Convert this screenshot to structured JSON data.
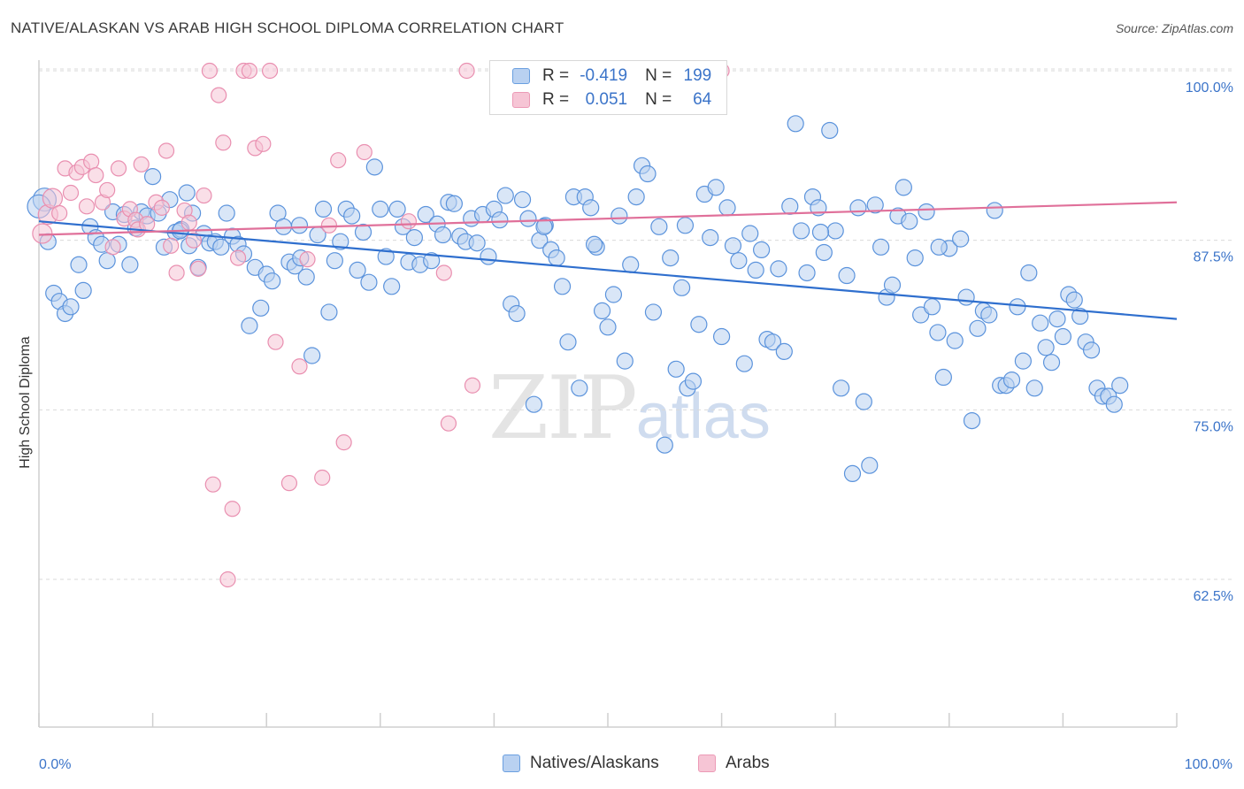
{
  "title": "NATIVE/ALASKAN VS ARAB HIGH SCHOOL DIPLOMA CORRELATION CHART",
  "source": "Source: ZipAtlas.com",
  "colors": {
    "blue": "#3b74c9",
    "blue_line": "#2f6fce",
    "blue_fill": "#b9d1f1",
    "pink_line": "#e0709a",
    "pink_fill": "#f6c5d5",
    "grid": "#d9d9d9"
  },
  "legend": {
    "r_label": "R =",
    "n_label": "N =",
    "rows": [
      {
        "r": "-0.419",
        "n": "199"
      },
      {
        "r": "0.051",
        "n": "64"
      }
    ]
  },
  "bottom_legend": [
    "Natives/Alaskans",
    "Arabs"
  ],
  "watermark": {
    "zip": "ZIP",
    "atlas": "atlas"
  },
  "chart_data": {
    "type": "scatter",
    "ylabel": "High School Diploma",
    "xlabel": "",
    "xlim": [
      0,
      100
    ],
    "ylim": [
      50,
      102
    ],
    "x_tick_labels": [
      "0.0%",
      "100.0%"
    ],
    "y_ticks": [
      62.5,
      75.0,
      87.5,
      100.0
    ],
    "y_tick_labels": [
      "62.5%",
      "75.0%",
      "87.5%",
      "100.0%"
    ],
    "grid": "horizontal dashed",
    "series": [
      {
        "name": "Natives/Alaskans",
        "color": "#3b74c9",
        "trend": {
          "x": [
            0,
            100
          ],
          "y": [
            88.9,
            81.7
          ]
        },
        "points": [
          [
            0.5,
            90.5
          ],
          [
            0.8,
            87.4
          ],
          [
            1.3,
            83.6
          ],
          [
            1.8,
            83.0
          ],
          [
            2.3,
            82.1
          ],
          [
            2.8,
            82.6
          ],
          [
            3.5,
            85.7
          ],
          [
            3.9,
            83.8
          ],
          [
            4.5,
            88.5
          ],
          [
            5.0,
            87.7
          ],
          [
            5.5,
            87.2
          ],
          [
            6.0,
            86.0
          ],
          [
            6.5,
            89.6
          ],
          [
            7.0,
            87.2
          ],
          [
            7.5,
            89.4
          ],
          [
            8.0,
            85.7
          ],
          [
            8.5,
            88.4
          ],
          [
            9.0,
            89.6
          ],
          [
            9.5,
            89.3
          ],
          [
            10.0,
            92.2
          ],
          [
            10.5,
            89.5
          ],
          [
            11.0,
            87.0
          ],
          [
            11.5,
            90.5
          ],
          [
            12.0,
            88.1
          ],
          [
            12.5,
            88.3
          ],
          [
            13.0,
            91.0
          ],
          [
            13.5,
            89.5
          ],
          [
            14.0,
            85.5
          ],
          [
            14.5,
            88.0
          ],
          [
            15.0,
            87.3
          ],
          [
            15.5,
            87.4
          ],
          [
            16.0,
            87.0
          ],
          [
            16.5,
            89.5
          ],
          [
            17.0,
            87.8
          ],
          [
            17.5,
            87.2
          ],
          [
            18.0,
            86.5
          ],
          [
            18.5,
            81.2
          ],
          [
            19.0,
            85.5
          ],
          [
            19.5,
            82.5
          ],
          [
            20.0,
            85.0
          ],
          [
            20.5,
            84.5
          ],
          [
            21.0,
            89.5
          ],
          [
            21.5,
            88.5
          ],
          [
            22.0,
            85.9
          ],
          [
            22.5,
            85.6
          ],
          [
            23.0,
            86.2
          ],
          [
            23.5,
            84.8
          ],
          [
            24.0,
            79.0
          ],
          [
            24.5,
            87.9
          ],
          [
            25.0,
            89.8
          ],
          [
            25.5,
            82.2
          ],
          [
            26.0,
            86.0
          ],
          [
            26.5,
            87.4
          ],
          [
            27.0,
            89.8
          ],
          [
            27.5,
            89.3
          ],
          [
            28.0,
            85.3
          ],
          [
            28.5,
            88.1
          ],
          [
            29.0,
            84.4
          ],
          [
            29.5,
            92.9
          ],
          [
            30.0,
            89.8
          ],
          [
            30.5,
            86.3
          ],
          [
            31.0,
            84.1
          ],
          [
            31.5,
            89.8
          ],
          [
            32.0,
            88.5
          ],
          [
            32.5,
            85.9
          ],
          [
            33.0,
            87.7
          ],
          [
            33.5,
            85.7
          ],
          [
            34.0,
            89.4
          ],
          [
            34.5,
            86.0
          ],
          [
            35.0,
            88.7
          ],
          [
            35.5,
            87.9
          ],
          [
            36.0,
            90.3
          ],
          [
            36.5,
            90.2
          ],
          [
            37.0,
            87.8
          ],
          [
            37.5,
            87.4
          ],
          [
            38.0,
            89.1
          ],
          [
            38.5,
            87.3
          ],
          [
            39.0,
            89.4
          ],
          [
            39.5,
            86.3
          ],
          [
            40.0,
            89.8
          ],
          [
            40.5,
            89.0
          ],
          [
            41.0,
            90.8
          ],
          [
            41.5,
            82.8
          ],
          [
            42.0,
            82.1
          ],
          [
            42.5,
            90.5
          ],
          [
            43.0,
            89.1
          ],
          [
            43.5,
            75.4
          ],
          [
            44.0,
            87.5
          ],
          [
            44.5,
            88.6
          ],
          [
            45.0,
            86.8
          ],
          [
            45.5,
            86.2
          ],
          [
            46.0,
            84.1
          ],
          [
            46.5,
            80.0
          ],
          [
            47.0,
            90.7
          ],
          [
            47.5,
            76.6
          ],
          [
            48.0,
            90.7
          ],
          [
            48.5,
            89.9
          ],
          [
            49.0,
            87.0
          ],
          [
            49.5,
            82.3
          ],
          [
            50.0,
            81.1
          ],
          [
            50.5,
            83.5
          ],
          [
            51.0,
            89.3
          ],
          [
            51.5,
            78.6
          ],
          [
            52.0,
            85.7
          ],
          [
            52.5,
            90.7
          ],
          [
            53.0,
            93.0
          ],
          [
            53.5,
            92.4
          ],
          [
            54.0,
            82.2
          ],
          [
            54.5,
            88.5
          ],
          [
            55.0,
            72.4
          ],
          [
            55.5,
            86.2
          ],
          [
            56.0,
            78.0
          ],
          [
            56.5,
            84.0
          ],
          [
            57.0,
            76.6
          ],
          [
            57.5,
            77.1
          ],
          [
            58.0,
            81.3
          ],
          [
            58.5,
            90.9
          ],
          [
            59.0,
            87.7
          ],
          [
            59.5,
            91.4
          ],
          [
            60.0,
            80.4
          ],
          [
            60.5,
            89.9
          ],
          [
            61.0,
            87.1
          ],
          [
            61.5,
            86.0
          ],
          [
            62.0,
            78.4
          ],
          [
            62.5,
            88.0
          ],
          [
            63.0,
            85.3
          ],
          [
            63.5,
            86.8
          ],
          [
            64.0,
            80.2
          ],
          [
            64.5,
            80.0
          ],
          [
            65.0,
            85.4
          ],
          [
            65.5,
            79.3
          ],
          [
            66.0,
            90.0
          ],
          [
            66.5,
            96.1
          ],
          [
            67.0,
            88.2
          ],
          [
            67.5,
            85.1
          ],
          [
            68.0,
            90.7
          ],
          [
            68.5,
            89.9
          ],
          [
            69.0,
            86.6
          ],
          [
            69.5,
            95.6
          ],
          [
            70.0,
            88.2
          ],
          [
            70.5,
            76.6
          ],
          [
            71.0,
            84.9
          ],
          [
            71.5,
            70.3
          ],
          [
            72.0,
            89.9
          ],
          [
            72.5,
            75.6
          ],
          [
            73.0,
            70.9
          ],
          [
            73.5,
            90.1
          ],
          [
            74.0,
            87.0
          ],
          [
            74.5,
            83.3
          ],
          [
            75.0,
            84.2
          ],
          [
            75.5,
            89.3
          ],
          [
            76.0,
            91.4
          ],
          [
            76.5,
            88.9
          ],
          [
            77.0,
            86.2
          ],
          [
            77.5,
            82.0
          ],
          [
            78.0,
            89.6
          ],
          [
            78.5,
            82.6
          ],
          [
            79.0,
            80.7
          ],
          [
            79.5,
            77.4
          ],
          [
            80.0,
            86.9
          ],
          [
            80.5,
            80.1
          ],
          [
            81.0,
            87.6
          ],
          [
            81.5,
            83.3
          ],
          [
            82.0,
            74.2
          ],
          [
            82.5,
            81.0
          ],
          [
            83.0,
            82.3
          ],
          [
            83.5,
            82.0
          ],
          [
            84.0,
            89.7
          ],
          [
            84.5,
            76.8
          ],
          [
            85.0,
            76.8
          ],
          [
            85.5,
            77.2
          ],
          [
            86.0,
            82.6
          ],
          [
            86.5,
            78.6
          ],
          [
            87.0,
            85.1
          ],
          [
            87.5,
            76.6
          ],
          [
            88.0,
            81.4
          ],
          [
            88.5,
            79.6
          ],
          [
            89.0,
            78.5
          ],
          [
            89.5,
            81.7
          ],
          [
            90.0,
            80.4
          ],
          [
            90.5,
            83.5
          ],
          [
            91.0,
            83.1
          ],
          [
            91.5,
            81.9
          ],
          [
            92.0,
            80.0
          ],
          [
            92.5,
            79.4
          ],
          [
            93.0,
            76.6
          ],
          [
            93.5,
            76.0
          ],
          [
            94.0,
            76.0
          ],
          [
            94.5,
            75.4
          ],
          [
            95.0,
            76.8
          ],
          [
            12.4,
            88.2
          ],
          [
            22.9,
            88.6
          ],
          [
            44.4,
            88.5
          ],
          [
            56.8,
            88.6
          ],
          [
            68.7,
            88.1
          ],
          [
            13.2,
            87.1
          ],
          [
            48.8,
            87.2
          ],
          [
            79.1,
            87.0
          ],
          [
            0.0,
            90.0
          ]
        ]
      },
      {
        "name": "Arabs",
        "color": "#e0709a",
        "trend": {
          "x": [
            0,
            100
          ],
          "y": [
            87.9,
            90.3
          ]
        },
        "points": [
          [
            0.3,
            88.0
          ],
          [
            0.8,
            89.4
          ],
          [
            1.2,
            90.6
          ],
          [
            1.8,
            89.5
          ],
          [
            2.3,
            92.8
          ],
          [
            2.8,
            91.0
          ],
          [
            3.3,
            92.5
          ],
          [
            3.8,
            92.9
          ],
          [
            4.2,
            90.0
          ],
          [
            4.6,
            93.3
          ],
          [
            5.0,
            92.3
          ],
          [
            5.6,
            90.3
          ],
          [
            6.0,
            91.2
          ],
          [
            6.5,
            87.0
          ],
          [
            7.0,
            92.8
          ],
          [
            7.5,
            89.1
          ],
          [
            8.0,
            89.8
          ],
          [
            8.5,
            89.0
          ],
          [
            8.7,
            88.3
          ],
          [
            9.0,
            93.1
          ],
          [
            9.5,
            88.7
          ],
          [
            10.3,
            90.3
          ],
          [
            10.8,
            89.9
          ],
          [
            11.2,
            94.1
          ],
          [
            11.6,
            87.1
          ],
          [
            12.1,
            85.1
          ],
          [
            12.8,
            89.7
          ],
          [
            13.2,
            88.8
          ],
          [
            13.6,
            87.5
          ],
          [
            14.0,
            85.4
          ],
          [
            14.5,
            90.8
          ],
          [
            15.0,
            100.0
          ],
          [
            15.3,
            69.5
          ],
          [
            15.8,
            98.2
          ],
          [
            16.2,
            94.7
          ],
          [
            16.6,
            62.5
          ],
          [
            17.0,
            67.7
          ],
          [
            17.5,
            86.2
          ],
          [
            18.0,
            100.0
          ],
          [
            18.5,
            100.0
          ],
          [
            19.0,
            94.3
          ],
          [
            19.7,
            94.6
          ],
          [
            20.3,
            100.0
          ],
          [
            20.8,
            80.0
          ],
          [
            22.0,
            69.6
          ],
          [
            22.9,
            78.2
          ],
          [
            23.6,
            86.1
          ],
          [
            24.9,
            70.0
          ],
          [
            25.5,
            88.6
          ],
          [
            26.3,
            93.4
          ],
          [
            26.8,
            72.6
          ],
          [
            28.6,
            94.0
          ],
          [
            32.5,
            88.9
          ],
          [
            35.6,
            85.1
          ],
          [
            36.0,
            74.0
          ],
          [
            37.6,
            100.0
          ],
          [
            38.1,
            76.8
          ],
          [
            40.3,
            100.0
          ],
          [
            41.4,
            100.0
          ],
          [
            43.8,
            100.0
          ],
          [
            44.2,
            100.0
          ],
          [
            47.3,
            100.0
          ],
          [
            53.7,
            100.0
          ],
          [
            60.0,
            100.0
          ]
        ]
      }
    ]
  }
}
